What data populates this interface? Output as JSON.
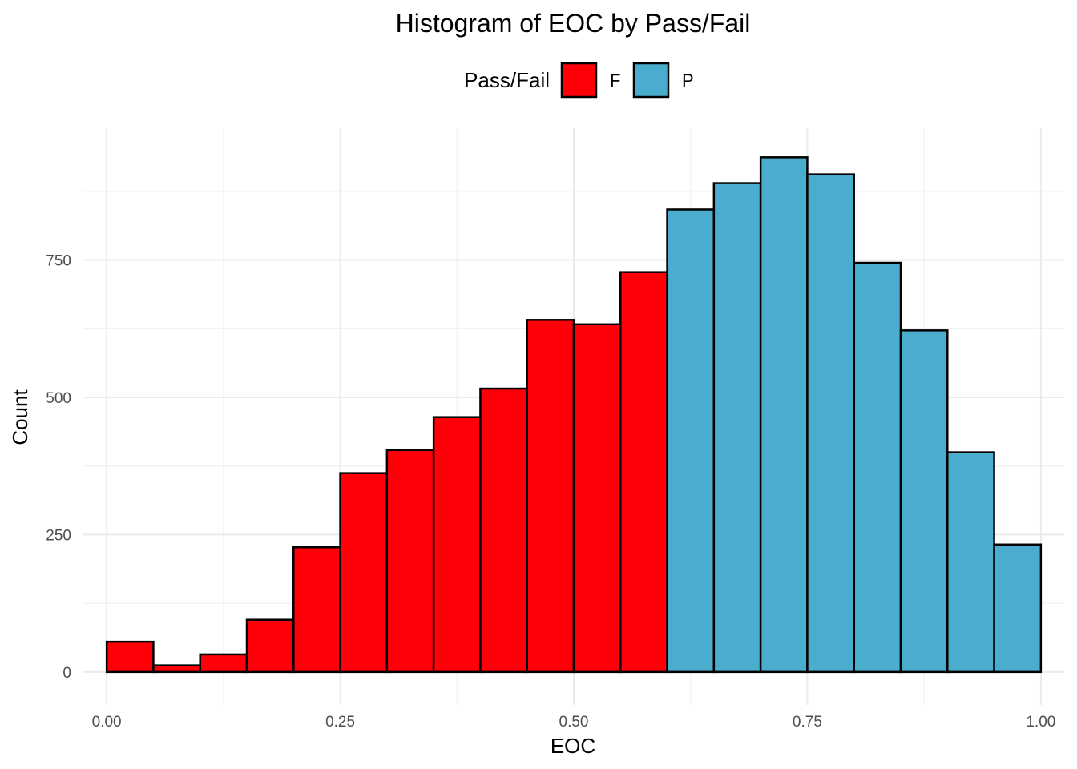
{
  "chart_data": {
    "type": "bar",
    "title": "Histogram of EOC by Pass/Fail",
    "xlabel": "EOC",
    "ylabel": "Count",
    "xlim": [
      -0.025,
      1.025
    ],
    "ylim": [
      -60,
      990
    ],
    "x_ticks": [
      0.0,
      0.25,
      0.5,
      0.75,
      1.0
    ],
    "x_tick_labels": [
      "0.00",
      "0.25",
      "0.50",
      "0.75",
      "1.00"
    ],
    "y_ticks": [
      0,
      250,
      500,
      750
    ],
    "y_tick_labels": [
      "0",
      "250",
      "500",
      "750"
    ],
    "bin_width": 0.05,
    "grid": true,
    "legend": {
      "title": "Pass/Fail",
      "position": "top",
      "entries": [
        {
          "key": "F",
          "label": "F",
          "color": "#FF0008"
        },
        {
          "key": "P",
          "label": "P",
          "color": "#4BADCE"
        }
      ]
    },
    "series": [
      {
        "name": "F",
        "color": "#FF0008",
        "bins_start": [
          0.0,
          0.05,
          0.1,
          0.15,
          0.2,
          0.25,
          0.3,
          0.35,
          0.4,
          0.45,
          0.5,
          0.55
        ],
        "values": [
          55,
          12,
          32,
          95,
          227,
          362,
          404,
          464,
          516,
          641,
          633,
          728
        ]
      },
      {
        "name": "P",
        "color": "#4BADCE",
        "bins_start": [
          0.6,
          0.65,
          0.7,
          0.75,
          0.8,
          0.85,
          0.9,
          0.95
        ],
        "values": [
          842,
          890,
          937,
          906,
          745,
          622,
          400,
          232
        ]
      }
    ]
  }
}
